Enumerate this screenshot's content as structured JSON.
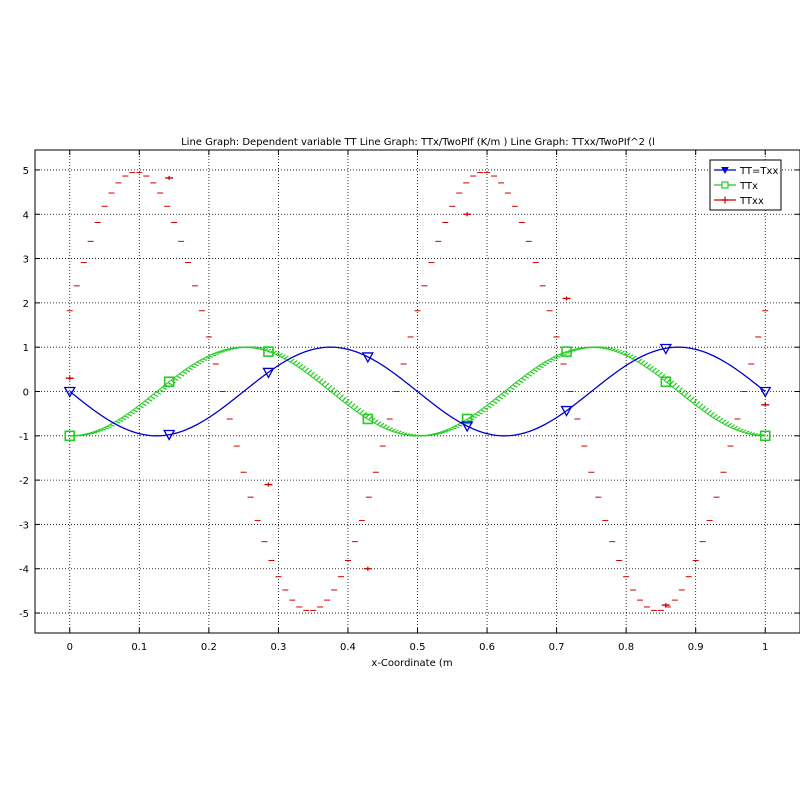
{
  "chart_data": {
    "type": "line",
    "title": "Line Graph: Dependent variable TT Line Graph: TTx/TwoPIf (K/m ) Line Graph: TTxx/TwoPIf^2 (l",
    "xlabel": "x-Coordinate (m",
    "ylabel": "",
    "xlim": [
      -0.05,
      1.05
    ],
    "ylim": [
      -5.45,
      5.45
    ],
    "xticks": [
      "0",
      "0.1",
      "0.2",
      "0.3",
      "0.4",
      "0.5",
      "0.6",
      "0.7",
      "0.8",
      "0.9",
      "1"
    ],
    "yticks": [
      "5",
      "4",
      "3",
      "2",
      "1",
      "0",
      "-1",
      "-2",
      "-3",
      "-4",
      "-5"
    ],
    "grid": true,
    "legend_position": "top-right",
    "function_period": 0.5,
    "series": [
      {
        "name": "TT=Txx",
        "color": "#0000cc",
        "marker": "triangle-down",
        "amplitude": 1,
        "x": [
          0,
          0.1429,
          0.2857,
          0.4286,
          0.5714,
          0.7143,
          0.8571,
          1
        ],
        "y": [
          0,
          -0.97,
          0.43,
          0.78,
          -0.78,
          -0.43,
          0.97,
          0
        ]
      },
      {
        "name": "TTx",
        "color": "#22cc22",
        "marker": "square",
        "amplitude": 1,
        "x": [
          0,
          0.1429,
          0.2857,
          0.4286,
          0.5714,
          0.7143,
          0.8571,
          1
        ],
        "y": [
          -1,
          0.22,
          0.9,
          -0.62,
          -0.62,
          0.9,
          0.22,
          -1
        ]
      },
      {
        "name": "TTxx",
        "color": "#cc0000",
        "marker": "plus",
        "amplitude": 4.95,
        "x": [
          0,
          0.1429,
          0.2857,
          0.4286,
          0.5714,
          0.7143,
          0.8571,
          1
        ],
        "y": [
          0.3,
          4.82,
          -2.1,
          -4.0,
          4.0,
          2.1,
          -4.82,
          -0.3
        ]
      }
    ]
  },
  "colors": {
    "tt": "#0000cc",
    "ttx": "#22cc22",
    "ttxx": "#cc0000",
    "grid": "#000000"
  }
}
